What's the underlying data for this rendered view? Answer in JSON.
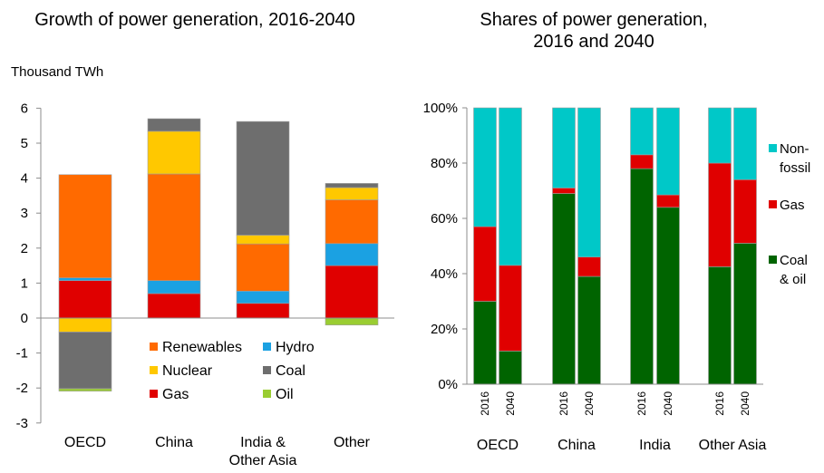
{
  "chart_data": [
    {
      "type": "bar",
      "stacked": true,
      "title": "Growth of power generation, 2016-2040",
      "ylabel": "Thousand TWh",
      "ylim": [
        -3,
        6
      ],
      "yticks": [
        "-3",
        "-2",
        "-1",
        "0",
        "1",
        "2",
        "3",
        "4",
        "5",
        "6"
      ],
      "categories": [
        "OECD",
        "China",
        "India &\nOther Asia",
        "Other"
      ],
      "legend_placement": "bottom-center",
      "series": [
        {
          "name": "Gas",
          "color": "#e00000",
          "values": [
            1.07,
            0.7,
            0.42,
            1.5
          ]
        },
        {
          "name": "Hydro",
          "color": "#1ba1e2",
          "values": [
            0.08,
            0.37,
            0.35,
            0.63
          ]
        },
        {
          "name": "Renewables",
          "color": "#ff6a00",
          "values": [
            2.95,
            3.05,
            1.35,
            1.25
          ]
        },
        {
          "name": "Nuclear",
          "color": "#ffc800",
          "values": [
            -0.4,
            1.22,
            0.25,
            0.35
          ]
        },
        {
          "name": "Coal",
          "color": "#6e6e6e",
          "values": [
            -1.62,
            0.36,
            3.25,
            0.12
          ]
        },
        {
          "name": "Oil",
          "color": "#9acd32",
          "values": [
            -0.07,
            0,
            0,
            -0.2
          ]
        }
      ],
      "legend": [
        {
          "name": "Renewables",
          "color": "#ff6a00"
        },
        {
          "name": "Hydro",
          "color": "#1ba1e2"
        },
        {
          "name": "Nuclear",
          "color": "#ffc800"
        },
        {
          "name": "Coal",
          "color": "#6e6e6e"
        },
        {
          "name": "Gas",
          "color": "#e00000"
        },
        {
          "name": "Oil",
          "color": "#9acd32"
        }
      ]
    },
    {
      "type": "bar",
      "stacked": true,
      "title": "Shares of power generation,\n2016 and 2040",
      "ylim": [
        0,
        100
      ],
      "yticks": [
        "0%",
        "20%",
        "40%",
        "60%",
        "80%",
        "100%"
      ],
      "groups": [
        "OECD",
        "China",
        "India",
        "Other Asia"
      ],
      "years": [
        "2016",
        "2040"
      ],
      "legend_placement": "right",
      "series": [
        {
          "name": "Coal\n& oil",
          "color": "#006400",
          "values": [
            30,
            12,
            69,
            39,
            78,
            64,
            42.5,
            51
          ]
        },
        {
          "name": "Gas",
          "color": "#e00000",
          "values": [
            27,
            31,
            2,
            7,
            5,
            4.5,
            37.5,
            23
          ]
        },
        {
          "name": "Non-\nfossil",
          "color": "#00c8c8",
          "values": [
            43,
            57,
            29,
            54,
            17,
            31.5,
            20,
            26
          ]
        }
      ]
    }
  ]
}
